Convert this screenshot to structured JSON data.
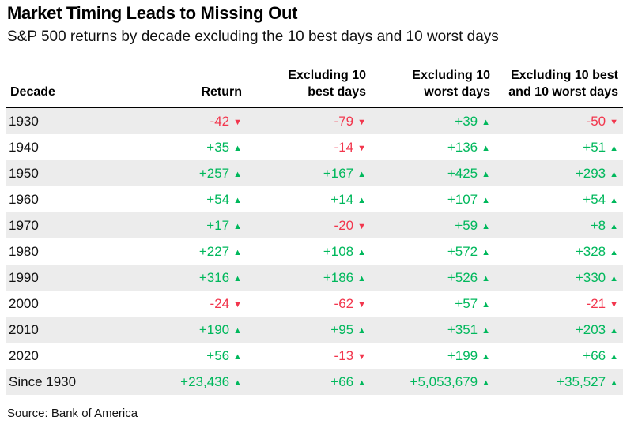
{
  "title": "Market Timing Leads to Missing Out",
  "subtitle": "S&P 500 returns by decade excluding the 10 best days and 10 worst days",
  "source": "Source: Bank of America",
  "colors": {
    "positive": "#00b85c",
    "negative": "#f2364d",
    "row_shade": "#ececec"
  },
  "icons": {
    "up": "triangle-up-icon",
    "down": "triangle-down-icon"
  },
  "chart_data": {
    "type": "table",
    "columns": [
      {
        "line1": "Decade",
        "line2": ""
      },
      {
        "line1": "Return",
        "line2": ""
      },
      {
        "line1": "Excluding 10",
        "line2": "best days"
      },
      {
        "line1": "Excluding 10",
        "line2": "worst days"
      },
      {
        "line1": "Excluding 10 best",
        "line2": "and 10 worst days"
      }
    ],
    "rows": [
      {
        "label": "1930",
        "cells": [
          {
            "text": "-42",
            "dir": "down"
          },
          {
            "text": "-79",
            "dir": "down"
          },
          {
            "text": "+39",
            "dir": "up"
          },
          {
            "text": "-50",
            "dir": "down"
          }
        ]
      },
      {
        "label": "1940",
        "cells": [
          {
            "text": "+35",
            "dir": "up"
          },
          {
            "text": "-14",
            "dir": "down"
          },
          {
            "text": "+136",
            "dir": "up"
          },
          {
            "text": "+51",
            "dir": "up"
          }
        ]
      },
      {
        "label": "1950",
        "cells": [
          {
            "text": "+257",
            "dir": "up"
          },
          {
            "text": "+167",
            "dir": "up"
          },
          {
            "text": "+425",
            "dir": "up"
          },
          {
            "text": "+293",
            "dir": "up"
          }
        ]
      },
      {
        "label": "1960",
        "cells": [
          {
            "text": "+54",
            "dir": "up"
          },
          {
            "text": "+14",
            "dir": "up"
          },
          {
            "text": "+107",
            "dir": "up"
          },
          {
            "text": "+54",
            "dir": "up"
          }
        ]
      },
      {
        "label": "1970",
        "cells": [
          {
            "text": "+17",
            "dir": "up"
          },
          {
            "text": "-20",
            "dir": "down"
          },
          {
            "text": "+59",
            "dir": "up"
          },
          {
            "text": "+8",
            "dir": "up"
          }
        ]
      },
      {
        "label": "1980",
        "cells": [
          {
            "text": "+227",
            "dir": "up"
          },
          {
            "text": "+108",
            "dir": "up"
          },
          {
            "text": "+572",
            "dir": "up"
          },
          {
            "text": "+328",
            "dir": "up"
          }
        ]
      },
      {
        "label": "1990",
        "cells": [
          {
            "text": "+316",
            "dir": "up"
          },
          {
            "text": "+186",
            "dir": "up"
          },
          {
            "text": "+526",
            "dir": "up"
          },
          {
            "text": "+330",
            "dir": "up"
          }
        ]
      },
      {
        "label": "2000",
        "cells": [
          {
            "text": "-24",
            "dir": "down"
          },
          {
            "text": "-62",
            "dir": "down"
          },
          {
            "text": "+57",
            "dir": "up"
          },
          {
            "text": "-21",
            "dir": "down"
          }
        ]
      },
      {
        "label": "2010",
        "cells": [
          {
            "text": "+190",
            "dir": "up"
          },
          {
            "text": "+95",
            "dir": "up"
          },
          {
            "text": "+351",
            "dir": "up"
          },
          {
            "text": "+203",
            "dir": "up"
          }
        ]
      },
      {
        "label": "2020",
        "cells": [
          {
            "text": "+56",
            "dir": "up"
          },
          {
            "text": "-13",
            "dir": "down"
          },
          {
            "text": "+199",
            "dir": "up"
          },
          {
            "text": "+66",
            "dir": "up"
          }
        ]
      },
      {
        "label": "Since 1930",
        "cells": [
          {
            "text": "+23,436",
            "dir": "up"
          },
          {
            "text": "+66",
            "dir": "up"
          },
          {
            "text": "+5,053,679",
            "dir": "up"
          },
          {
            "text": "+35,527",
            "dir": "up"
          }
        ]
      }
    ]
  }
}
